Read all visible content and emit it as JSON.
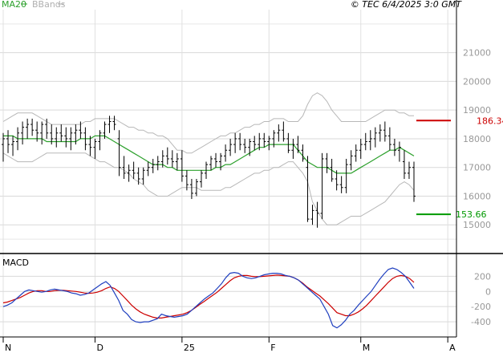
{
  "header": {
    "indicators": [
      {
        "name": "MA20",
        "color": "#2ca02c"
      },
      {
        "name": "BBands",
        "color": "#b0b0b0"
      }
    ],
    "timestamp": "© TEC 6/4/2025 3:0 GMT"
  },
  "levels": {
    "resistance": {
      "value": 186.34,
      "label": "186.34",
      "color": "#cc0000"
    },
    "support": {
      "value": 153.66,
      "label": "153.66",
      "color": "#009900"
    }
  },
  "chart_data": [
    {
      "type": "line",
      "title": "",
      "subtitle": "Price (OHLC bars) with MA20 and Bollinger Bands",
      "ylim": [
        140,
        225
      ],
      "y_ticks": [
        {
          "value": 150,
          "label": "15000"
        },
        {
          "value": 160,
          "label": "16000"
        },
        {
          "value": 170,
          "label": "17000"
        },
        {
          "value": 180,
          "label": "18000"
        },
        {
          "value": 190,
          "label": "19000"
        },
        {
          "value": 200,
          "label": "20000"
        },
        {
          "value": 210,
          "label": "21000"
        }
      ],
      "x_ticks": [
        {
          "index": 0,
          "label": "N"
        },
        {
          "index": 19,
          "label": "D"
        },
        {
          "index": 37,
          "label": "25"
        },
        {
          "index": 55,
          "label": "F"
        },
        {
          "index": 74,
          "label": "M"
        },
        {
          "index": 92,
          "label": "A"
        }
      ],
      "ohlc": [
        [
          178,
          182,
          172,
          180
        ],
        [
          180,
          183,
          175,
          178
        ],
        [
          178,
          181,
          174,
          179
        ],
        [
          179,
          184,
          176,
          182
        ],
        [
          182,
          186,
          178,
          184
        ],
        [
          184,
          187,
          180,
          185
        ],
        [
          185,
          187,
          181,
          183
        ],
        [
          183,
          186,
          179,
          182
        ],
        [
          182,
          186,
          178,
          185
        ],
        [
          185,
          187,
          180,
          182
        ],
        [
          182,
          185,
          178,
          180
        ],
        [
          180,
          184,
          177,
          182
        ],
        [
          182,
          185,
          179,
          181
        ],
        [
          181,
          184,
          177,
          180
        ],
        [
          180,
          184,
          176,
          182
        ],
        [
          182,
          185,
          178,
          183
        ],
        [
          183,
          186,
          180,
          182
        ],
        [
          182,
          184,
          176,
          178
        ],
        [
          178,
          181,
          174,
          177
        ],
        [
          177,
          180,
          173,
          179
        ],
        [
          179,
          183,
          176,
          182
        ],
        [
          182,
          186,
          180,
          185
        ],
        [
          185,
          188,
          182,
          186
        ],
        [
          186,
          188,
          183,
          185
        ],
        [
          180,
          183,
          167,
          170
        ],
        [
          170,
          174,
          166,
          168
        ],
        [
          168,
          171,
          165,
          169
        ],
        [
          169,
          172,
          166,
          168
        ],
        [
          168,
          170,
          164,
          166
        ],
        [
          166,
          170,
          164,
          169
        ],
        [
          169,
          172,
          167,
          170
        ],
        [
          170,
          173,
          168,
          171
        ],
        [
          171,
          174,
          169,
          172
        ],
        [
          172,
          176,
          170,
          174
        ],
        [
          174,
          177,
          171,
          173
        ],
        [
          173,
          176,
          170,
          172
        ],
        [
          172,
          175,
          169,
          173
        ],
        [
          173,
          176,
          165,
          167
        ],
        [
          167,
          169,
          162,
          164
        ],
        [
          164,
          166,
          159,
          161
        ],
        [
          161,
          166,
          160,
          165
        ],
        [
          165,
          169,
          163,
          168
        ],
        [
          168,
          172,
          166,
          171
        ],
        [
          171,
          174,
          169,
          173
        ],
        [
          173,
          175,
          170,
          172
        ],
        [
          172,
          175,
          169,
          174
        ],
        [
          174,
          178,
          172,
          176
        ],
        [
          176,
          180,
          174,
          178
        ],
        [
          178,
          182,
          175,
          180
        ],
        [
          180,
          182,
          176,
          178
        ],
        [
          178,
          180,
          175,
          177
        ],
        [
          177,
          180,
          174,
          179
        ],
        [
          179,
          181,
          176,
          178
        ],
        [
          178,
          182,
          176,
          180
        ],
        [
          180,
          182,
          177,
          179
        ],
        [
          179,
          181,
          176,
          180
        ],
        [
          180,
          183,
          177,
          182
        ],
        [
          182,
          185,
          179,
          183
        ],
        [
          183,
          186,
          179,
          180
        ],
        [
          180,
          182,
          175,
          176
        ],
        [
          176,
          180,
          173,
          178
        ],
        [
          178,
          181,
          175,
          176
        ],
        [
          176,
          178,
          172,
          173
        ],
        [
          170,
          174,
          151,
          152
        ],
        [
          152,
          157,
          150,
          155
        ],
        [
          155,
          158,
          149,
          154
        ],
        [
          154,
          175,
          152,
          173
        ],
        [
          173,
          175,
          168,
          170
        ],
        [
          170,
          173,
          165,
          166
        ],
        [
          166,
          169,
          162,
          164
        ],
        [
          164,
          167,
          161,
          163
        ],
        [
          163,
          173,
          161,
          171
        ],
        [
          171,
          176,
          169,
          174
        ],
        [
          174,
          178,
          172,
          176
        ],
        [
          176,
          180,
          173,
          178
        ],
        [
          178,
          182,
          176,
          179
        ],
        [
          179,
          183,
          176,
          180
        ],
        [
          180,
          184,
          177,
          182
        ],
        [
          182,
          185,
          179,
          183
        ],
        [
          183,
          186,
          179,
          181
        ],
        [
          181,
          184,
          176,
          178
        ],
        [
          178,
          180,
          174,
          176
        ],
        [
          176,
          179,
          172,
          177
        ],
        [
          172,
          176,
          166,
          168
        ],
        [
          168,
          172,
          166,
          170
        ],
        [
          170,
          172,
          158,
          160
        ]
      ],
      "series": [
        {
          "name": "MA20",
          "values": [
            181,
            181,
            181,
            180,
            180,
            180,
            180,
            180,
            180,
            179,
            179,
            179,
            179,
            179,
            179,
            179,
            180,
            180,
            180,
            181,
            181,
            181,
            180,
            179,
            178,
            177,
            176,
            175,
            174,
            173,
            172,
            171,
            171,
            171,
            170,
            170,
            169,
            169,
            169,
            169,
            169,
            169,
            169,
            169,
            170,
            170,
            171,
            171,
            172,
            173,
            174,
            175,
            176,
            177,
            177,
            178,
            178,
            178,
            178,
            178,
            178,
            176,
            174,
            172,
            171,
            170,
            170,
            170,
            169,
            168,
            168,
            168,
            168,
            169,
            170,
            171,
            172,
            173,
            174,
            175,
            176,
            176,
            177,
            176,
            175,
            174
          ]
        },
        {
          "name": "Upper Band",
          "values": [
            186,
            187,
            188,
            189,
            189,
            189,
            189,
            188,
            187,
            186,
            185,
            185,
            185,
            185,
            185,
            185,
            185,
            186,
            186,
            187,
            187,
            187,
            187,
            187,
            186,
            185,
            184,
            184,
            183,
            183,
            182,
            182,
            181,
            181,
            180,
            178,
            176,
            176,
            175,
            175,
            176,
            177,
            178,
            179,
            180,
            181,
            181,
            182,
            182,
            183,
            184,
            184,
            185,
            185,
            186,
            186,
            187,
            187,
            187,
            186,
            186,
            186,
            188,
            192,
            195,
            196,
            195,
            193,
            190,
            188,
            186,
            186,
            186,
            186,
            186,
            186,
            187,
            188,
            189,
            190,
            190,
            190,
            189,
            189,
            188,
            188
          ]
        },
        {
          "name": "Lower Band",
          "values": [
            175,
            174,
            173,
            172,
            172,
            172,
            172,
            173,
            174,
            175,
            175,
            175,
            175,
            175,
            175,
            175,
            175,
            175,
            174,
            173,
            172,
            172,
            171,
            170,
            170,
            169,
            168,
            166,
            165,
            164,
            162,
            161,
            160,
            160,
            160,
            161,
            162,
            163,
            163,
            163,
            163,
            162,
            162,
            162,
            162,
            162,
            163,
            163,
            164,
            165,
            166,
            167,
            168,
            168,
            169,
            169,
            170,
            170,
            171,
            172,
            172,
            170,
            168,
            165,
            158,
            155,
            152,
            150,
            150,
            150,
            151,
            152,
            153,
            153,
            153,
            154,
            155,
            156,
            157,
            158,
            160,
            162,
            164,
            165,
            164,
            162
          ]
        }
      ]
    },
    {
      "type": "line",
      "title": "MACD",
      "ylim": [
        -600,
        500
      ],
      "y_ticks": [
        {
          "value": 200,
          "label": "200"
        },
        {
          "value": 0,
          "label": "0"
        },
        {
          "value": -200,
          "label": "-200"
        },
        {
          "value": -400,
          "label": "-400"
        }
      ],
      "series": [
        {
          "name": "MACD",
          "values": [
            -200,
            -180,
            -150,
            -100,
            -50,
            0,
            20,
            10,
            0,
            -10,
            0,
            20,
            30,
            20,
            10,
            0,
            -20,
            -30,
            -50,
            -40,
            -20,
            20,
            60,
            100,
            130,
            80,
            -20,
            -120,
            -250,
            -300,
            -370,
            -400,
            -410,
            -400,
            -400,
            -380,
            -360,
            -300,
            -320,
            -330,
            -340,
            -330,
            -320,
            -300,
            -250,
            -200,
            -150,
            -100,
            -60,
            -20,
            40,
            100,
            180,
            240,
            250,
            240,
            200,
            180,
            170,
            180,
            200,
            220,
            230,
            240,
            240,
            230,
            210,
            200,
            180,
            150,
            100,
            50,
            0,
            -50,
            -100,
            -200,
            -300,
            -450,
            -480,
            -440,
            -380,
            -300,
            -250,
            -180,
            -120,
            -60,
            0,
            80,
            160,
            230,
            290,
            310,
            290,
            250,
            200,
            120,
            40
          ]
        },
        {
          "name": "Signal",
          "values": [
            -150,
            -140,
            -120,
            -100,
            -80,
            -50,
            -20,
            0,
            10,
            10,
            0,
            0,
            10,
            15,
            15,
            10,
            5,
            0,
            -10,
            -20,
            -25,
            -20,
            -10,
            10,
            40,
            60,
            40,
            0,
            -60,
            -120,
            -180,
            -230,
            -270,
            -300,
            -320,
            -340,
            -350,
            -350,
            -340,
            -330,
            -320,
            -310,
            -300,
            -280,
            -250,
            -210,
            -170,
            -130,
            -90,
            -50,
            -10,
            40,
            90,
            140,
            180,
            200,
            210,
            210,
            200,
            195,
            195,
            200,
            205,
            210,
            215,
            210,
            205,
            200,
            180,
            150,
            110,
            60,
            20,
            -20,
            -60,
            -110,
            -160,
            -220,
            -280,
            -300,
            -320,
            -320,
            -300,
            -270,
            -230,
            -180,
            -120,
            -60,
            0,
            60,
            120,
            170,
            200,
            210,
            200,
            170,
            120
          ]
        }
      ]
    }
  ]
}
